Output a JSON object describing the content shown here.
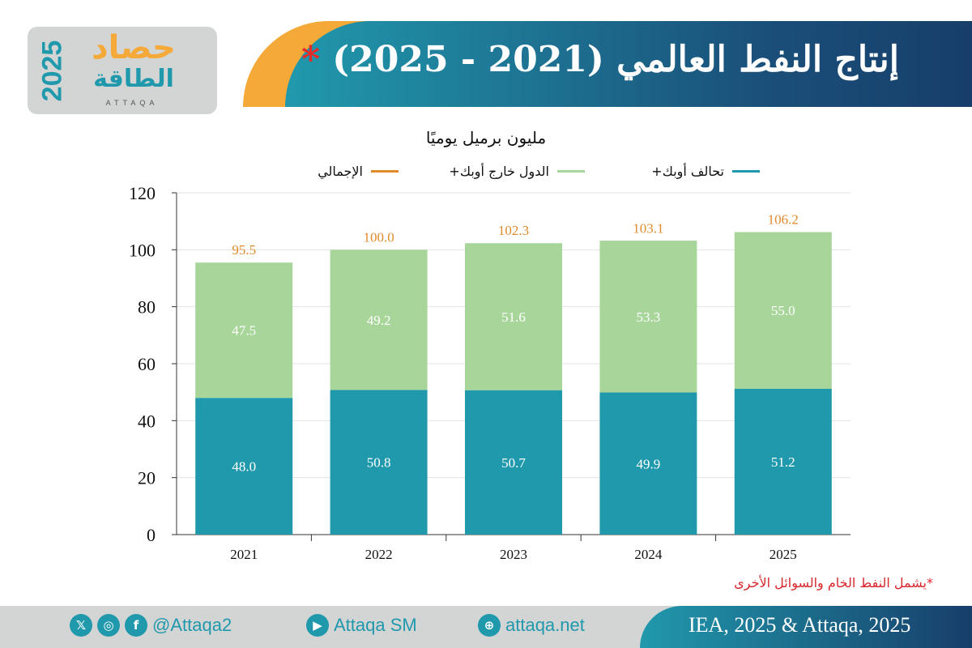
{
  "header": {
    "title": "إنتاج النفط العالمي (2021 - 2025)",
    "title_marker": "*"
  },
  "logo": {
    "year": "2025",
    "line1": "حصاد",
    "line2": "الطاقة",
    "latin": "ATTAQA"
  },
  "colors": {
    "opec_plus": "#2199ad",
    "non_opec_plus": "#a8d69a",
    "total": "#e08a2b",
    "note": "#d8262c",
    "banner_start": "#2199ad",
    "banner_end": "#173e6a"
  },
  "chart_data": {
    "type": "bar",
    "stacked": true,
    "unit_label": "مليون برميل يوميًا",
    "categories": [
      "2021",
      "2022",
      "2023",
      "2024",
      "2025"
    ],
    "series": [
      {
        "name": "تحالف أوبك+",
        "color": "#2199ad",
        "values": [
          48.0,
          50.8,
          50.7,
          49.9,
          51.2
        ]
      },
      {
        "name": "الدول خارج أوبك+",
        "color": "#a8d69a",
        "values": [
          47.5,
          49.2,
          51.6,
          53.3,
          55.0
        ]
      }
    ],
    "totals": {
      "name": "الإجمالي",
      "color": "#e08a2b",
      "values": [
        95.5,
        100.0,
        102.3,
        103.1,
        106.2
      ]
    },
    "ylim": [
      0,
      120
    ],
    "yticks": [
      0,
      20,
      40,
      60,
      80,
      100,
      120
    ],
    "grid": true,
    "legend_placement": "top"
  },
  "note": "*يشمل النفط الخام والسوائل الأخرى",
  "footer": {
    "handle": "@Attaqa2",
    "youtube": "Attaqa SM",
    "website": "attaqa.net",
    "source": "IEA, 2025 & Attaqa, 2025"
  }
}
